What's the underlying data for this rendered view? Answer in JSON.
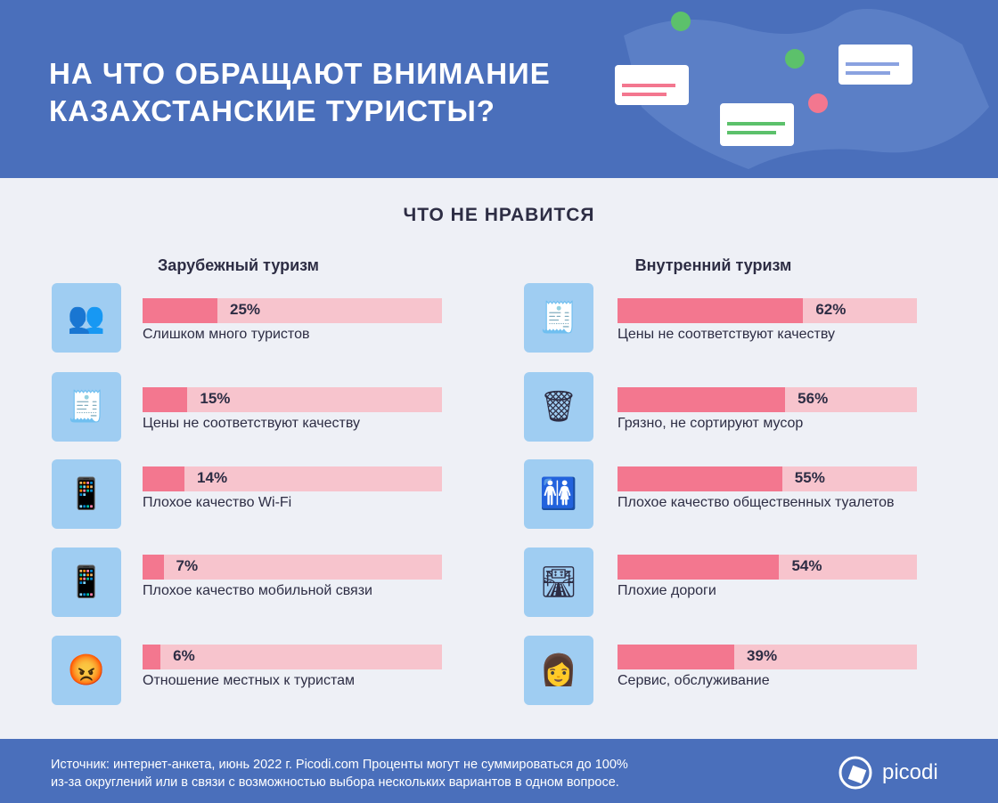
{
  "header": {
    "title_line1": "НА ЧТО ОБРАЩАЮТ ВНИМАНИЕ",
    "title_line2": "КАЗАХСТАНСКИЕ ТУРИСТЫ?"
  },
  "section_title": "ЧТО НЕ НРАВИТСЯ",
  "colors": {
    "header": "#4a6fbb",
    "bar_fill": "#f3778f",
    "bar_track": "#f7c4cd",
    "icon_bg": "#9fcdf2",
    "background": "#eef0f6"
  },
  "chart_data": [
    {
      "type": "bar",
      "orientation": "horizontal",
      "title": "Зарубежный туризм",
      "xlim": [
        0,
        100
      ],
      "categories": [
        "Слишком много туристов",
        "Цены не соответствуют качеству",
        "Плохое качество Wi-Fi",
        "Плохое качество мобильной связи",
        "Отношение местных к туристам"
      ],
      "values": [
        25,
        15,
        14,
        7,
        6
      ],
      "labels": [
        "25%",
        "15%",
        "14%",
        "7%",
        "6%"
      ],
      "icons": [
        "crowd-icon",
        "receipt-icon",
        "phone-wifi-icon",
        "phone-signal-icon",
        "angry-face-icon"
      ]
    },
    {
      "type": "bar",
      "orientation": "horizontal",
      "title": "Внутренний туризм",
      "xlim": [
        0,
        100
      ],
      "categories": [
        "Цены не соответствуют качеству",
        "Грязно, не сортируют мусор",
        "Плохое качество общественных туалетов",
        "Плохие дороги",
        "Сервис, обслуживание"
      ],
      "values": [
        62,
        56,
        55,
        54,
        39
      ],
      "labels": [
        "62%",
        "56%",
        "55%",
        "54%",
        "39%"
      ],
      "icons": [
        "receipt-icon",
        "trash-bin-icon",
        "toilet-sign-icon",
        "road-icon",
        "service-woman-icon"
      ]
    }
  ],
  "footer": {
    "source_line1": "Источник: интернет-анкета, июнь 2022 г. Picodi.com Проценты могут не суммироваться до 100%",
    "source_line2": "из-за округлений или в связи с возможностью выбора нескольких вариантов в одном вопросе.",
    "logo": "picodi"
  }
}
